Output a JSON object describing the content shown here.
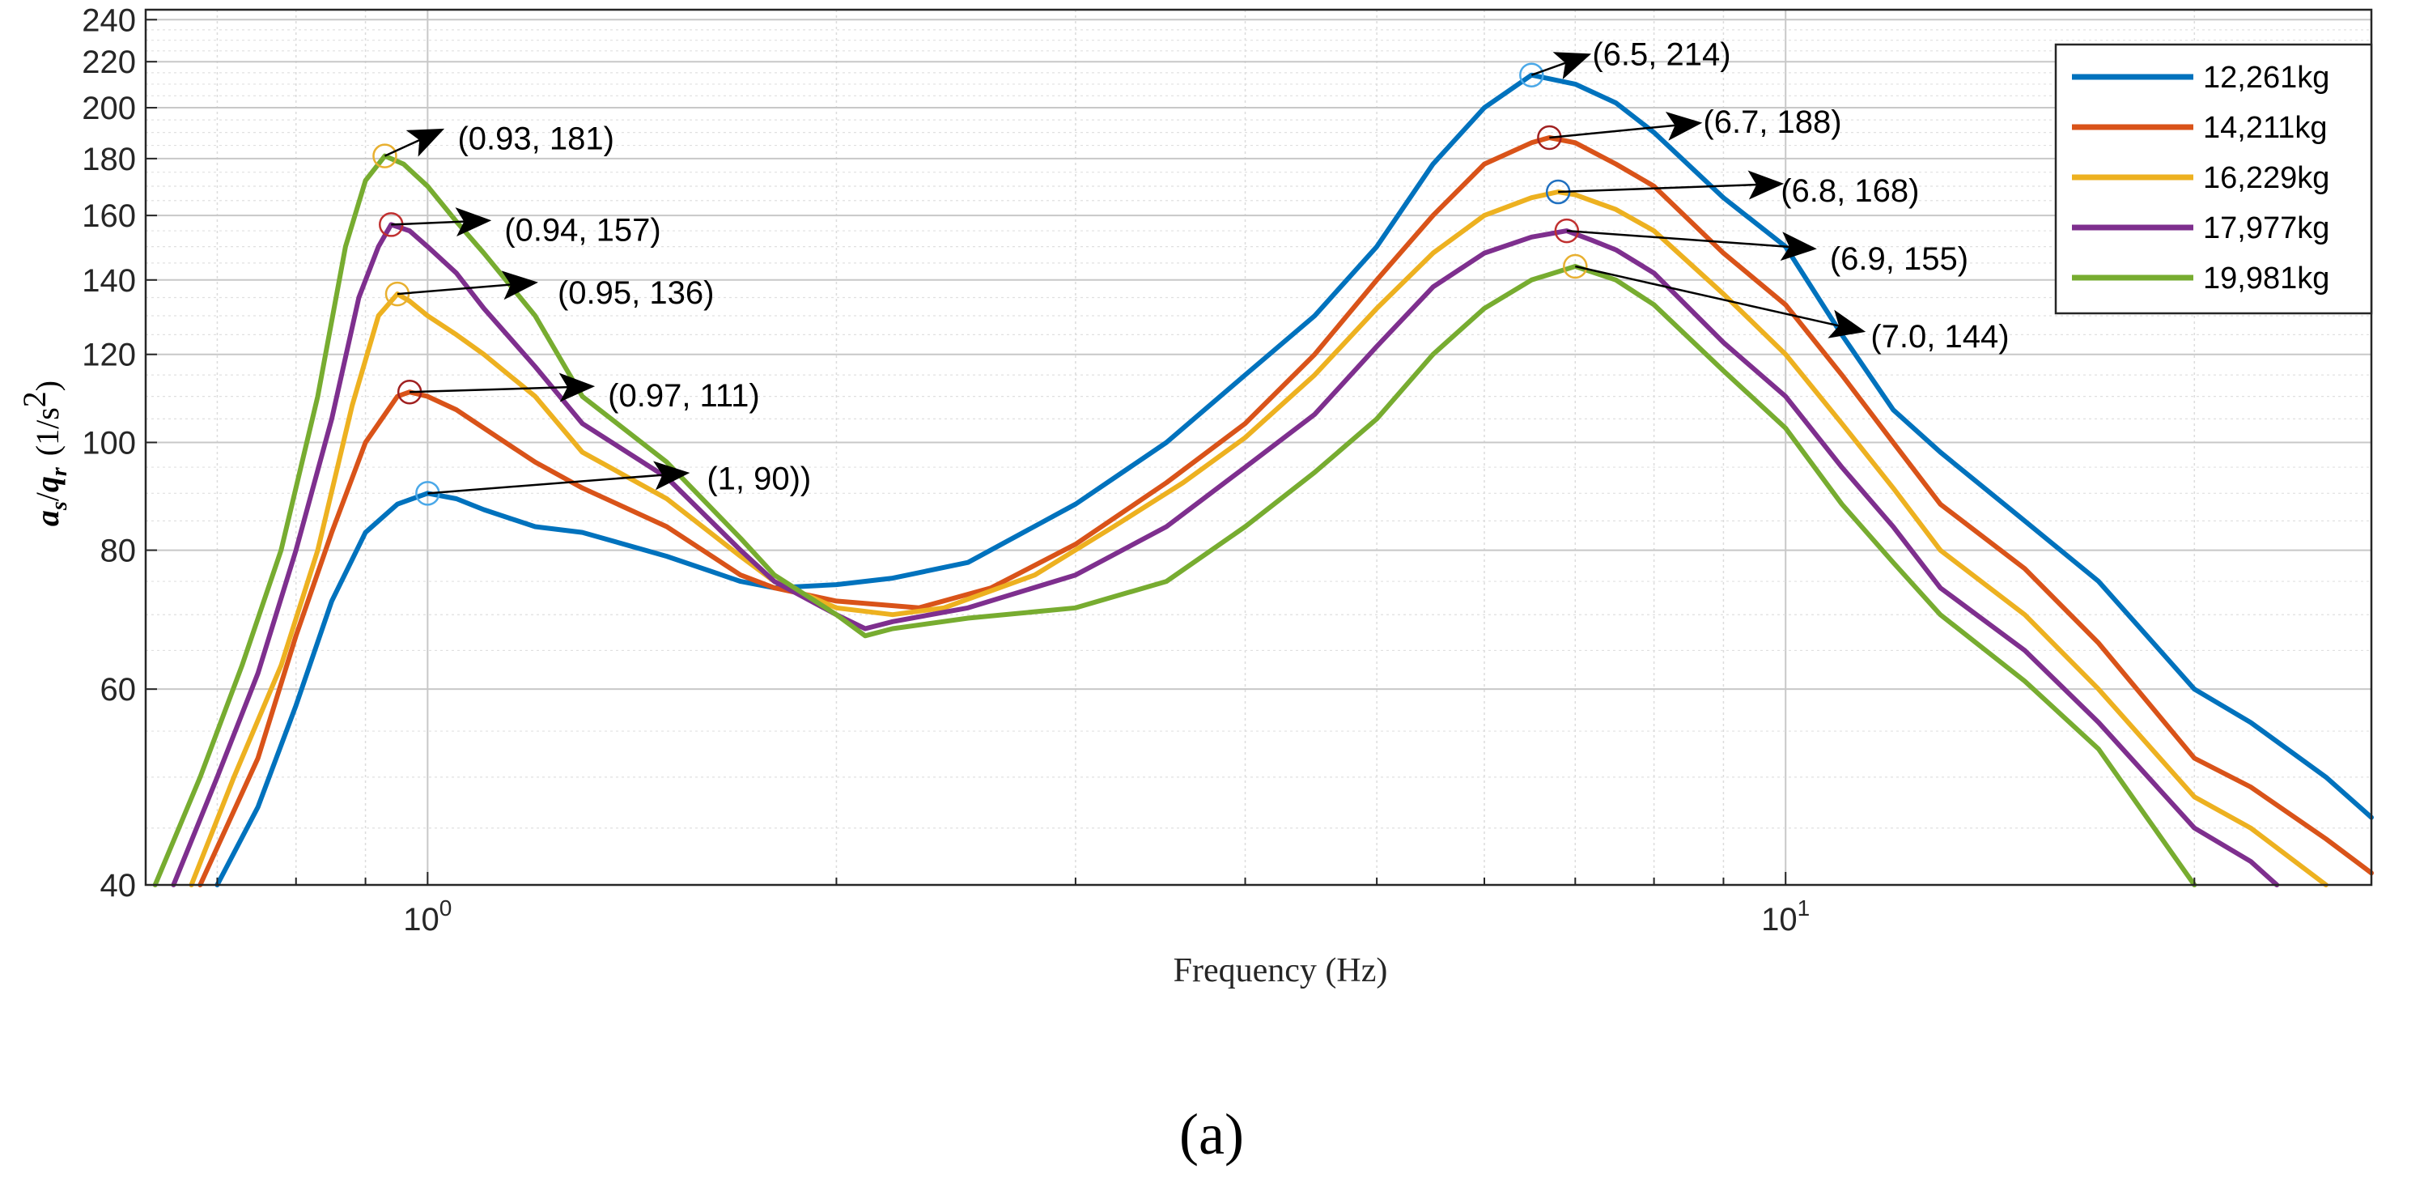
{
  "chart_data": {
    "type": "line",
    "xscale": "log",
    "yscale": "log",
    "xlim": [
      0.62,
      27
    ],
    "ylim": [
      40,
      245
    ],
    "grid": true,
    "legend_position": "top-right",
    "xlabel": "Frequency (Hz)",
    "ylabel": {
      "num": "a",
      "num_sub": "s",
      "sep": "/",
      "den": "q",
      "den_sub": "r",
      "units_pre": "(1/s",
      "units_sup": "2",
      "units_post": ")"
    },
    "x_ticks": [
      {
        "value": 1,
        "base": "10",
        "exp": "0"
      },
      {
        "value": 10,
        "base": "10",
        "exp": "1"
      }
    ],
    "y_ticks": [
      40,
      60,
      80,
      100,
      120,
      140,
      160,
      180,
      200,
      220,
      240
    ],
    "y_tick_labels": [
      "40",
      "60",
      "80",
      "100",
      "120",
      "140",
      "160",
      "180",
      "200",
      "220",
      "240"
    ],
    "caption": "(a)",
    "series": [
      {
        "name": "12,261kg",
        "color": "#0072bd",
        "points": [
          [
            0.7,
            40
          ],
          [
            0.75,
            47
          ],
          [
            0.8,
            58
          ],
          [
            0.85,
            72
          ],
          [
            0.9,
            83
          ],
          [
            0.95,
            88
          ],
          [
            1.0,
            90
          ],
          [
            1.05,
            89
          ],
          [
            1.1,
            87
          ],
          [
            1.2,
            84
          ],
          [
            1.3,
            83
          ],
          [
            1.5,
            79
          ],
          [
            1.7,
            75
          ],
          [
            1.8,
            74
          ],
          [
            2.0,
            74.5
          ],
          [
            2.2,
            75.5
          ],
          [
            2.5,
            78
          ],
          [
            3.0,
            88
          ],
          [
            3.5,
            100
          ],
          [
            4.0,
            115
          ],
          [
            4.5,
            130
          ],
          [
            5.0,
            150
          ],
          [
            5.5,
            178
          ],
          [
            6.0,
            200
          ],
          [
            6.5,
            214
          ],
          [
            7.0,
            210
          ],
          [
            7.5,
            202
          ],
          [
            8.0,
            190
          ],
          [
            9.0,
            166
          ],
          [
            10.0,
            150
          ],
          [
            11.0,
            125
          ],
          [
            12.0,
            107
          ],
          [
            13.0,
            98
          ],
          [
            15.0,
            85
          ],
          [
            17.0,
            75
          ],
          [
            20.0,
            60
          ],
          [
            22.0,
            56
          ],
          [
            25.0,
            50
          ],
          [
            27.0,
            46
          ]
        ]
      },
      {
        "name": "14,211kg",
        "color": "#d95319",
        "points": [
          [
            0.68,
            40
          ],
          [
            0.75,
            52
          ],
          [
            0.8,
            67
          ],
          [
            0.85,
            83
          ],
          [
            0.9,
            100
          ],
          [
            0.95,
            110
          ],
          [
            0.97,
            111
          ],
          [
            1.0,
            110
          ],
          [
            1.05,
            107
          ],
          [
            1.1,
            103
          ],
          [
            1.2,
            96
          ],
          [
            1.3,
            91
          ],
          [
            1.5,
            84
          ],
          [
            1.7,
            76
          ],
          [
            1.8,
            74
          ],
          [
            2.0,
            72
          ],
          [
            2.3,
            71
          ],
          [
            2.6,
            74
          ],
          [
            3.0,
            81
          ],
          [
            3.5,
            92
          ],
          [
            4.0,
            104
          ],
          [
            4.5,
            120
          ],
          [
            5.0,
            140
          ],
          [
            5.5,
            160
          ],
          [
            6.0,
            178
          ],
          [
            6.5,
            186
          ],
          [
            6.7,
            188
          ],
          [
            7.0,
            186
          ],
          [
            7.5,
            178
          ],
          [
            8.0,
            170
          ],
          [
            9.0,
            148
          ],
          [
            10.0,
            133
          ],
          [
            11.0,
            115
          ],
          [
            12.0,
            100
          ],
          [
            13.0,
            88
          ],
          [
            15.0,
            77
          ],
          [
            17.0,
            66
          ],
          [
            20.0,
            52
          ],
          [
            22.0,
            49
          ],
          [
            25.0,
            44
          ],
          [
            27.0,
            41
          ]
        ]
      },
      {
        "name": "16,229kg",
        "color": "#edb120",
        "points": [
          [
            0.67,
            40
          ],
          [
            0.72,
            50
          ],
          [
            0.78,
            63
          ],
          [
            0.83,
            80
          ],
          [
            0.88,
            108
          ],
          [
            0.92,
            130
          ],
          [
            0.95,
            136
          ],
          [
            0.97,
            134
          ],
          [
            1.0,
            130
          ],
          [
            1.05,
            125
          ],
          [
            1.1,
            120
          ],
          [
            1.2,
            110
          ],
          [
            1.3,
            98
          ],
          [
            1.5,
            89
          ],
          [
            1.7,
            79
          ],
          [
            1.8,
            75
          ],
          [
            2.0,
            71
          ],
          [
            2.2,
            70
          ],
          [
            2.4,
            71
          ],
          [
            2.8,
            76
          ],
          [
            3.2,
            84
          ],
          [
            3.6,
            92
          ],
          [
            4.0,
            101
          ],
          [
            4.5,
            115
          ],
          [
            5.0,
            132
          ],
          [
            5.5,
            148
          ],
          [
            6.0,
            160
          ],
          [
            6.5,
            166
          ],
          [
            6.8,
            168
          ],
          [
            7.0,
            167
          ],
          [
            7.5,
            162
          ],
          [
            8.0,
            155
          ],
          [
            9.0,
            136
          ],
          [
            10.0,
            120
          ],
          [
            11.0,
            104
          ],
          [
            12.0,
            91
          ],
          [
            13.0,
            80
          ],
          [
            15.0,
            70
          ],
          [
            17.0,
            60
          ],
          [
            20.0,
            48
          ],
          [
            22.0,
            45
          ],
          [
            25.0,
            40
          ]
        ]
      },
      {
        "name": "17,977kg",
        "color": "#7e2f8e",
        "points": [
          [
            0.65,
            40
          ],
          [
            0.7,
            50
          ],
          [
            0.75,
            62
          ],
          [
            0.8,
            80
          ],
          [
            0.85,
            105
          ],
          [
            0.89,
            135
          ],
          [
            0.92,
            150
          ],
          [
            0.94,
            157
          ],
          [
            0.97,
            155
          ],
          [
            1.0,
            150
          ],
          [
            1.05,
            142
          ],
          [
            1.1,
            132
          ],
          [
            1.2,
            117
          ],
          [
            1.3,
            104
          ],
          [
            1.5,
            93
          ],
          [
            1.7,
            80
          ],
          [
            1.8,
            75
          ],
          [
            2.0,
            70
          ],
          [
            2.1,
            68
          ],
          [
            2.2,
            69
          ],
          [
            2.5,
            71
          ],
          [
            3.0,
            76
          ],
          [
            3.5,
            84
          ],
          [
            4.0,
            95
          ],
          [
            4.5,
            106
          ],
          [
            5.0,
            122
          ],
          [
            5.5,
            138
          ],
          [
            6.0,
            148
          ],
          [
            6.5,
            153
          ],
          [
            6.9,
            155
          ],
          [
            7.2,
            152
          ],
          [
            7.5,
            149
          ],
          [
            8.0,
            142
          ],
          [
            9.0,
            123
          ],
          [
            10.0,
            110
          ],
          [
            11.0,
            95
          ],
          [
            12.0,
            84
          ],
          [
            13.0,
            74
          ],
          [
            15.0,
            65
          ],
          [
            17.0,
            56
          ],
          [
            20.0,
            45
          ],
          [
            22.0,
            42
          ],
          [
            23.0,
            40
          ]
        ]
      },
      {
        "name": "19,981kg",
        "color": "#77ac30",
        "points": [
          [
            0.63,
            40
          ],
          [
            0.68,
            50
          ],
          [
            0.73,
            63
          ],
          [
            0.78,
            80
          ],
          [
            0.83,
            110
          ],
          [
            0.87,
            150
          ],
          [
            0.9,
            172
          ],
          [
            0.93,
            181
          ],
          [
            0.96,
            178
          ],
          [
            1.0,
            170
          ],
          [
            1.05,
            158
          ],
          [
            1.1,
            148
          ],
          [
            1.2,
            130
          ],
          [
            1.3,
            110
          ],
          [
            1.5,
            96
          ],
          [
            1.7,
            82
          ],
          [
            1.8,
            76
          ],
          [
            2.0,
            70
          ],
          [
            2.1,
            67
          ],
          [
            2.2,
            68
          ],
          [
            2.5,
            69.5
          ],
          [
            3.0,
            71
          ],
          [
            3.5,
            75
          ],
          [
            4.0,
            84
          ],
          [
            4.5,
            94
          ],
          [
            5.0,
            105
          ],
          [
            5.5,
            120
          ],
          [
            6.0,
            132
          ],
          [
            6.5,
            140
          ],
          [
            7.0,
            144
          ],
          [
            7.5,
            140
          ],
          [
            8.0,
            133
          ],
          [
            9.0,
            116
          ],
          [
            10.0,
            103
          ],
          [
            11.0,
            88
          ],
          [
            12.0,
            78
          ],
          [
            13.0,
            70
          ],
          [
            15.0,
            61
          ],
          [
            17.0,
            53
          ],
          [
            20.0,
            40
          ]
        ]
      }
    ],
    "annotations": [
      {
        "series": 4,
        "x": 0.93,
        "y": 181,
        "label": "(0.93, 181)"
      },
      {
        "series": 3,
        "x": 0.94,
        "y": 157,
        "label": "(0.94, 157)"
      },
      {
        "series": 2,
        "x": 0.95,
        "y": 136,
        "label": "(0.95, 136)"
      },
      {
        "series": 1,
        "x": 0.97,
        "y": 111,
        "label": "(0.97, 111)"
      },
      {
        "series": 0,
        "x": 1.0,
        "y": 90,
        "label": "(1, 90))"
      },
      {
        "series": 0,
        "x": 6.5,
        "y": 214,
        "label": "(6.5, 214)"
      },
      {
        "series": 1,
        "x": 6.7,
        "y": 188,
        "label": "(6.7, 188)"
      },
      {
        "series": 2,
        "x": 6.8,
        "y": 168,
        "label": "(6.8, 168)"
      },
      {
        "series": 3,
        "x": 6.9,
        "y": 155,
        "label": "(6.9, 155)"
      },
      {
        "series": 4,
        "x": 7.0,
        "y": 144,
        "label": "(7.0, 144)"
      }
    ]
  }
}
